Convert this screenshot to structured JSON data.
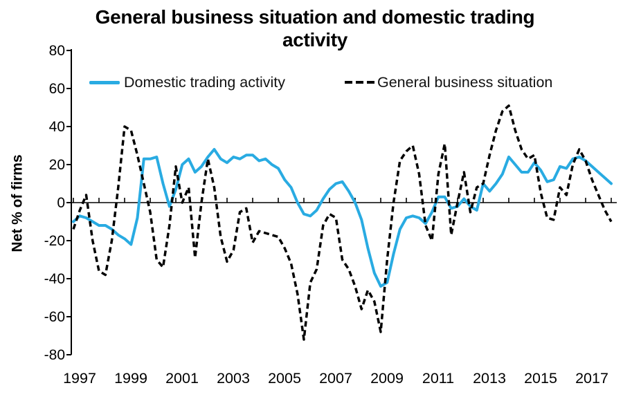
{
  "title": {
    "text": "General business situation and domestic trading activity"
  },
  "y_axis": {
    "label": "Net % of firms"
  },
  "legend": {
    "items": [
      {
        "label": "Domestic trading activity",
        "color": "#29ABE2",
        "style": "solid"
      },
      {
        "label": "General business situation",
        "color": "#000000",
        "style": "dashed"
      }
    ]
  },
  "chart_data": {
    "type": "line",
    "title": "General business situation and domestic trading activity",
    "xlabel": "",
    "ylabel": "Net % of firms",
    "ylim": [
      -80,
      80
    ],
    "y_ticks": [
      80,
      60,
      40,
      20,
      0,
      -20,
      -40,
      -60,
      -80
    ],
    "x_tick_labels": [
      "1997",
      "1999",
      "2001",
      "2003",
      "2005",
      "2007",
      "2009",
      "2011",
      "2013",
      "2015",
      "2017"
    ],
    "x_start": 1997.0,
    "x_end": 2018.0,
    "x_step_years": 0.25,
    "frequency": "quarterly",
    "grid": false,
    "legend_position": "top-inside",
    "axis_crosses_at_zero": true,
    "series": [
      {
        "name": "Domestic trading activity",
        "color": "#29ABE2",
        "line_style": "solid",
        "line_width": 4,
        "values": [
          -10,
          -7,
          -8,
          -10,
          -12,
          -12,
          -14,
          -17,
          -19,
          -22,
          -8,
          23,
          23,
          24,
          10,
          -2,
          7,
          20,
          23,
          16,
          19,
          24,
          28,
          23,
          21,
          24,
          23,
          25,
          25,
          22,
          23,
          20,
          18,
          12,
          8,
          0,
          -6,
          -7,
          -4,
          2,
          7,
          10,
          11,
          6,
          0,
          -9,
          -24,
          -37,
          -44,
          -42,
          -27,
          -14,
          -8,
          -7,
          -8,
          -11,
          -5,
          3,
          3,
          -3,
          -2,
          2,
          -2,
          -4,
          10,
          6,
          10,
          15,
          24,
          20,
          16,
          16,
          21,
          17,
          11,
          12,
          19,
          18,
          23,
          24,
          22,
          19,
          16,
          13,
          10
        ]
      },
      {
        "name": "General business situation",
        "color": "#000000",
        "line_style": "dashed",
        "line_width": 3.5,
        "values": [
          -14,
          -4,
          4,
          -20,
          -36,
          -38,
          -20,
          8,
          40,
          38,
          25,
          10,
          -5,
          -30,
          -34,
          -12,
          19,
          0,
          8,
          -29,
          0,
          23,
          8,
          -18,
          -31,
          -25,
          -5,
          -3,
          -21,
          -15,
          -16,
          -17,
          -18,
          -24,
          -32,
          -48,
          -72,
          -42,
          -35,
          -12,
          -6,
          -8,
          -30,
          -35,
          -44,
          -56,
          -46,
          -52,
          -68,
          -30,
          0,
          22,
          27,
          30,
          15,
          -12,
          -20,
          15,
          31,
          -17,
          0,
          16,
          -5,
          8,
          10,
          25,
          38,
          48,
          51,
          38,
          28,
          23,
          25,
          5,
          -8,
          -9,
          8,
          4,
          20,
          28,
          22,
          12,
          4,
          -4,
          -10
        ]
      }
    ]
  }
}
